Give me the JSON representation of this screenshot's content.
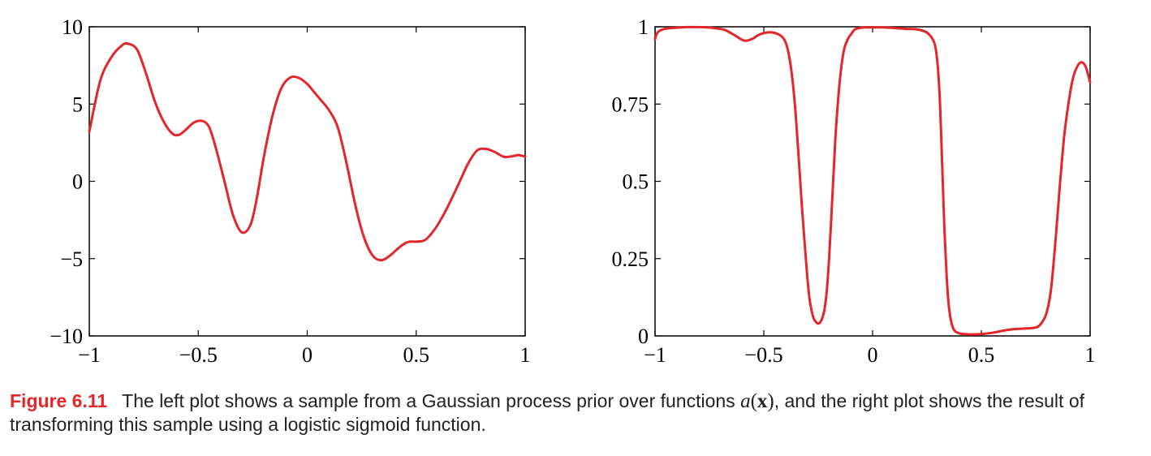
{
  "colors": {
    "curve": "#e4262b",
    "caption_label": "#e4262b",
    "axes": "#000000"
  },
  "chart_data": [
    {
      "type": "line",
      "title": "",
      "xlabel": "",
      "ylabel": "",
      "xlim": [
        -1,
        1
      ],
      "ylim": [
        -10,
        10
      ],
      "xticks": [
        -1,
        -0.5,
        0,
        0.5,
        1
      ],
      "xtick_labels": [
        "−1",
        "−0.5",
        "0",
        "0.5",
        "1"
      ],
      "yticks": [
        -10,
        -5,
        0,
        5,
        10
      ],
      "ytick_labels": [
        "−10",
        "−5",
        "0",
        "5",
        "10"
      ],
      "grid": false,
      "series": [
        {
          "x": [
            -1.0,
            -0.95,
            -0.9,
            -0.85,
            -0.82,
            -0.78,
            -0.74,
            -0.7,
            -0.66,
            -0.62,
            -0.59,
            -0.56,
            -0.52,
            -0.48,
            -0.45,
            -0.42,
            -0.38,
            -0.34,
            -0.3,
            -0.26,
            -0.23,
            -0.2,
            -0.16,
            -0.12,
            -0.08,
            -0.04,
            0.0,
            0.03,
            0.06,
            0.1,
            0.14,
            0.18,
            0.22,
            0.26,
            0.3,
            0.34,
            0.38,
            0.42,
            0.45,
            0.47,
            0.5,
            0.54,
            0.58,
            0.62,
            0.66,
            0.7,
            0.74,
            0.78,
            0.82,
            0.86,
            0.9,
            0.93,
            0.95,
            0.97,
            1.0
          ],
          "y": [
            3.2,
            6.5,
            8.0,
            8.8,
            8.9,
            8.5,
            7.0,
            5.2,
            3.9,
            3.1,
            3.0,
            3.3,
            3.8,
            3.9,
            3.5,
            2.2,
            0.0,
            -2.2,
            -3.3,
            -2.8,
            -1.0,
            1.5,
            4.2,
            6.0,
            6.7,
            6.7,
            6.3,
            5.8,
            5.3,
            4.6,
            3.5,
            1.2,
            -1.5,
            -3.6,
            -4.8,
            -5.1,
            -4.8,
            -4.3,
            -4.0,
            -3.9,
            -3.9,
            -3.8,
            -3.2,
            -2.3,
            -1.2,
            0.0,
            1.2,
            2.0,
            2.1,
            1.9,
            1.6,
            1.6,
            1.65,
            1.7,
            1.6
          ]
        }
      ]
    },
    {
      "type": "line",
      "title": "",
      "xlabel": "",
      "ylabel": "",
      "xlim": [
        -1,
        1
      ],
      "ylim": [
        0,
        1
      ],
      "xticks": [
        -1,
        -0.5,
        0,
        0.5,
        1
      ],
      "xtick_labels": [
        "−1",
        "−0.5",
        "0",
        "0.5",
        "1"
      ],
      "yticks": [
        0,
        0.25,
        0.5,
        0.75,
        1
      ],
      "ytick_labels": [
        "0",
        "0.25",
        "0.5",
        "0.75",
        "1"
      ],
      "grid": false,
      "series": [
        {
          "x": [
            -1.0,
            -0.99,
            -0.97,
            -0.94,
            -0.9,
            -0.85,
            -0.8,
            -0.76,
            -0.72,
            -0.68,
            -0.64,
            -0.6,
            -0.58,
            -0.55,
            -0.52,
            -0.48,
            -0.45,
            -0.42,
            -0.4,
            -0.385,
            -0.37,
            -0.355,
            -0.34,
            -0.325,
            -0.31,
            -0.3,
            -0.29,
            -0.28,
            -0.27,
            -0.26,
            -0.25,
            -0.24,
            -0.23,
            -0.22,
            -0.21,
            -0.2,
            -0.19,
            -0.18,
            -0.17,
            -0.16,
            -0.15,
            -0.14,
            -0.13,
            -0.12,
            -0.11,
            -0.1,
            -0.09,
            -0.08,
            -0.06,
            -0.03,
            0.0,
            0.04,
            0.08,
            0.12,
            0.16,
            0.2,
            0.24,
            0.26,
            0.28,
            0.29,
            0.3,
            0.31,
            0.32,
            0.33,
            0.34,
            0.35,
            0.36,
            0.37,
            0.38,
            0.4,
            0.42,
            0.45,
            0.5,
            0.55,
            0.6,
            0.65,
            0.7,
            0.74,
            0.76,
            0.78,
            0.8,
            0.82,
            0.84,
            0.86,
            0.88,
            0.9,
            0.92,
            0.94,
            0.96,
            0.98,
            1.0
          ],
          "y": [
            0.96,
            0.98,
            0.99,
            0.995,
            0.997,
            0.999,
            0.999,
            0.998,
            0.995,
            0.99,
            0.975,
            0.958,
            0.955,
            0.962,
            0.975,
            0.982,
            0.98,
            0.97,
            0.95,
            0.91,
            0.84,
            0.73,
            0.58,
            0.42,
            0.28,
            0.19,
            0.12,
            0.08,
            0.055,
            0.045,
            0.04,
            0.045,
            0.06,
            0.09,
            0.15,
            0.25,
            0.38,
            0.52,
            0.65,
            0.75,
            0.83,
            0.89,
            0.93,
            0.95,
            0.965,
            0.975,
            0.985,
            0.992,
            0.996,
            0.998,
            0.998,
            0.998,
            0.997,
            0.995,
            0.993,
            0.992,
            0.985,
            0.975,
            0.955,
            0.93,
            0.87,
            0.75,
            0.55,
            0.35,
            0.2,
            0.1,
            0.05,
            0.025,
            0.015,
            0.008,
            0.006,
            0.005,
            0.006,
            0.01,
            0.017,
            0.022,
            0.024,
            0.026,
            0.03,
            0.045,
            0.075,
            0.15,
            0.3,
            0.48,
            0.64,
            0.75,
            0.83,
            0.87,
            0.885,
            0.87,
            0.82
          ]
        }
      ]
    }
  ],
  "caption": {
    "label": "Figure 6.11",
    "text_before_math": "The left plot shows a sample from a Gaussian process prior over functions ",
    "math_func": "a",
    "math_open": "(",
    "math_var": "x",
    "math_close": ")",
    "text_after_math": ", and the right plot shows the result of transforming this sample using a logistic sigmoid function."
  }
}
